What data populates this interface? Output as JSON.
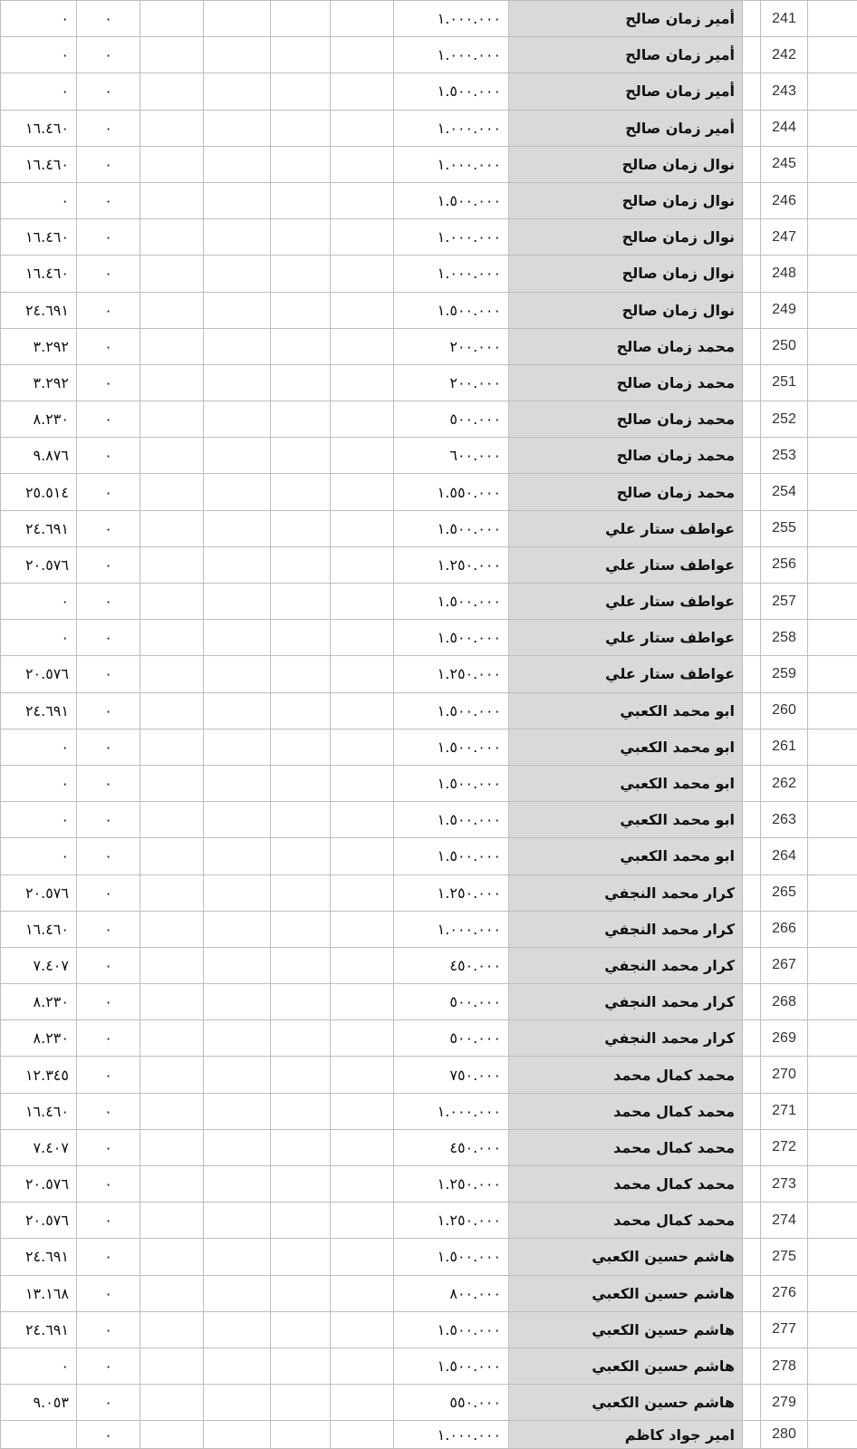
{
  "rows": [
    {
      "num": "241",
      "name": "أمير زمان صالح",
      "a": "١.٠٠٠.٠٠٠",
      "f": "٠",
      "g": "٠"
    },
    {
      "num": "242",
      "name": "أمير زمان صالح",
      "a": "١.٠٠٠.٠٠٠",
      "f": "٠",
      "g": "٠"
    },
    {
      "num": "243",
      "name": "أمير زمان صالح",
      "a": "١.٥٠٠.٠٠٠",
      "f": "٠",
      "g": "٠"
    },
    {
      "num": "244",
      "name": "أمير زمان صالح",
      "a": "١.٠٠٠.٠٠٠",
      "f": "٠",
      "g": "١٦.٤٦٠"
    },
    {
      "num": "245",
      "name": "نوال زمان صالح",
      "a": "١.٠٠٠.٠٠٠",
      "f": "٠",
      "g": "١٦.٤٦٠"
    },
    {
      "num": "246",
      "name": "نوال زمان صالح",
      "a": "١.٥٠٠.٠٠٠",
      "f": "٠",
      "g": "٠"
    },
    {
      "num": "247",
      "name": "نوال زمان صالح",
      "a": "١.٠٠٠.٠٠٠",
      "f": "٠",
      "g": "١٦.٤٦٠"
    },
    {
      "num": "248",
      "name": "نوال زمان صالح",
      "a": "١.٠٠٠.٠٠٠",
      "f": "٠",
      "g": "١٦.٤٦٠"
    },
    {
      "num": "249",
      "name": "نوال زمان صالح",
      "a": "١.٥٠٠.٠٠٠",
      "f": "٠",
      "g": "٢٤.٦٩١"
    },
    {
      "num": "250",
      "name": "محمد زمان صالح",
      "a": "٢٠٠.٠٠٠",
      "f": "٠",
      "g": "٣.٢٩٢"
    },
    {
      "num": "251",
      "name": "محمد زمان صالح",
      "a": "٢٠٠.٠٠٠",
      "f": "٠",
      "g": "٣.٢٩٢"
    },
    {
      "num": "252",
      "name": "محمد زمان صالح",
      "a": "٥٠٠.٠٠٠",
      "f": "٠",
      "g": "٨.٢٣٠"
    },
    {
      "num": "253",
      "name": "محمد زمان صالح",
      "a": "٦٠٠.٠٠٠",
      "f": "٠",
      "g": "٩.٨٧٦"
    },
    {
      "num": "254",
      "name": "محمد زمان صالح",
      "a": "١.٥٥٠.٠٠٠",
      "f": "٠",
      "g": "٢٥.٥١٤"
    },
    {
      "num": "255",
      "name": "عواطف ستار علي",
      "a": "١.٥٠٠.٠٠٠",
      "f": "٠",
      "g": "٢٤.٦٩١"
    },
    {
      "num": "256",
      "name": "عواطف ستار علي",
      "a": "١.٢٥٠.٠٠٠",
      "f": "٠",
      "g": "٢٠.٥٧٦"
    },
    {
      "num": "257",
      "name": "عواطف ستار علي",
      "a": "١.٥٠٠.٠٠٠",
      "f": "٠",
      "g": "٠"
    },
    {
      "num": "258",
      "name": "عواطف ستار علي",
      "a": "١.٥٠٠.٠٠٠",
      "f": "٠",
      "g": "٠"
    },
    {
      "num": "259",
      "name": "عواطف ستار علي",
      "a": "١.٢٥٠.٠٠٠",
      "f": "٠",
      "g": "٢٠.٥٧٦"
    },
    {
      "num": "260",
      "name": "ابو محمد الكعبي",
      "a": "١.٥٠٠.٠٠٠",
      "f": "٠",
      "g": "٢٤.٦٩١"
    },
    {
      "num": "261",
      "name": "ابو محمد الكعبي",
      "a": "١.٥٠٠.٠٠٠",
      "f": "٠",
      "g": "٠"
    },
    {
      "num": "262",
      "name": "ابو محمد الكعبي",
      "a": "١.٥٠٠.٠٠٠",
      "f": "٠",
      "g": "٠"
    },
    {
      "num": "263",
      "name": "ابو محمد الكعبي",
      "a": "١.٥٠٠.٠٠٠",
      "f": "٠",
      "g": "٠"
    },
    {
      "num": "264",
      "name": "ابو محمد الكعبي",
      "a": "١.٥٠٠.٠٠٠",
      "f": "٠",
      "g": "٠"
    },
    {
      "num": "265",
      "name": "كرار محمد النجفي",
      "a": "١.٢٥٠.٠٠٠",
      "f": "٠",
      "g": "٢٠.٥٧٦"
    },
    {
      "num": "266",
      "name": "كرار محمد النجفي",
      "a": "١.٠٠٠.٠٠٠",
      "f": "٠",
      "g": "١٦.٤٦٠"
    },
    {
      "num": "267",
      "name": "كرار محمد النجفي",
      "a": "٤٥٠.٠٠٠",
      "f": "٠",
      "g": "٧.٤٠٧"
    },
    {
      "num": "268",
      "name": "كرار محمد النجفي",
      "a": "٥٠٠.٠٠٠",
      "f": "٠",
      "g": "٨.٢٣٠"
    },
    {
      "num": "269",
      "name": "كرار محمد النجفي",
      "a": "٥٠٠.٠٠٠",
      "f": "٠",
      "g": "٨.٢٣٠"
    },
    {
      "num": "270",
      "name": "محمد كمال محمد",
      "a": "٧٥٠.٠٠٠",
      "f": "٠",
      "g": "١٢.٣٤٥"
    },
    {
      "num": "271",
      "name": "محمد كمال محمد",
      "a": "١.٠٠٠.٠٠٠",
      "f": "٠",
      "g": "١٦.٤٦٠"
    },
    {
      "num": "272",
      "name": "محمد كمال محمد",
      "a": "٤٥٠.٠٠٠",
      "f": "٠",
      "g": "٧.٤٠٧"
    },
    {
      "num": "273",
      "name": "محمد كمال محمد",
      "a": "١.٢٥٠.٠٠٠",
      "f": "٠",
      "g": "٢٠.٥٧٦"
    },
    {
      "num": "274",
      "name": "محمد كمال محمد",
      "a": "١.٢٥٠.٠٠٠",
      "f": "٠",
      "g": "٢٠.٥٧٦"
    },
    {
      "num": "275",
      "name": "هاشم حسين الكعبي",
      "a": "١.٥٠٠.٠٠٠",
      "f": "٠",
      "g": "٢٤.٦٩١"
    },
    {
      "num": "276",
      "name": "هاشم حسين الكعبي",
      "a": "٨٠٠.٠٠٠",
      "f": "٠",
      "g": "١٣.١٦٨"
    },
    {
      "num": "277",
      "name": "هاشم حسين الكعبي",
      "a": "١.٥٠٠.٠٠٠",
      "f": "٠",
      "g": "٢٤.٦٩١"
    },
    {
      "num": "278",
      "name": "هاشم حسين الكعبي",
      "a": "١.٥٠٠.٠٠٠",
      "f": "٠",
      "g": "٠"
    },
    {
      "num": "279",
      "name": "هاشم حسين الكعبي",
      "a": "٥٥٠.٠٠٠",
      "f": "٠",
      "g": "٩.٠٥٣"
    },
    {
      "num": "280",
      "name": "امير جواد كاظم",
      "a": "١.٠٠٠.٠٠٠",
      "f": "٠",
      "g": ""
    }
  ]
}
